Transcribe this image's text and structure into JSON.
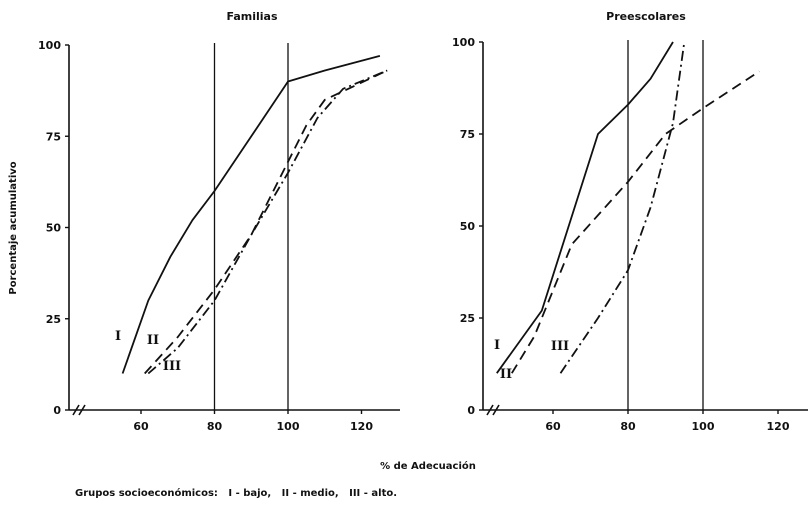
{
  "xlabel": "% de Adecuación",
  "footnote": "Grupos socioeconómicos:   I - bajo,   II - medio,   III - alto.",
  "chart_data": [
    {
      "type": "line",
      "title": "Familias",
      "ylabel": "Porcentaje acumulativo",
      "xlabel": "% de Adecuación",
      "xlim": [
        40,
        130
      ],
      "ylim": [
        0,
        100
      ],
      "x_ticks": [
        "60",
        "80",
        "100",
        "120"
      ],
      "y_ticks": [
        "0",
        "25",
        "50",
        "75",
        "100"
      ],
      "vlines": [
        80,
        100
      ],
      "series": [
        {
          "name": "I",
          "style": "solid",
          "x": [
            55,
            62,
            68,
            74,
            80,
            90,
            100,
            110,
            125
          ],
          "y": [
            10,
            30,
            42,
            52,
            60,
            75,
            90,
            93,
            97
          ]
        },
        {
          "name": "II",
          "style": "dashed",
          "x": [
            61,
            70,
            80,
            90,
            100,
            105,
            110,
            127
          ],
          "y": [
            10,
            20,
            33,
            48,
            68,
            78,
            85,
            93
          ]
        },
        {
          "name": "III",
          "style": "dashdot",
          "x": [
            62,
            70,
            80,
            90,
            100,
            108,
            115,
            127
          ],
          "y": [
            10,
            17,
            30,
            48,
            65,
            80,
            88,
            93
          ]
        }
      ],
      "labels": [
        "I",
        "II",
        "III"
      ]
    },
    {
      "type": "line",
      "title": "Preescolares",
      "ylabel": "",
      "xlabel": "% de Adecuación",
      "xlim": [
        40,
        130
      ],
      "ylim": [
        0,
        100
      ],
      "x_ticks": [
        "60",
        "80",
        "100",
        "120"
      ],
      "y_ticks": [
        "0",
        "25",
        "50",
        "75",
        "100"
      ],
      "vlines": [
        80,
        100
      ],
      "series": [
        {
          "name": "I",
          "style": "solid",
          "x": [
            45,
            57,
            72,
            80,
            86,
            92
          ],
          "y": [
            10,
            27,
            75,
            83,
            90,
            100
          ]
        },
        {
          "name": "II",
          "style": "dashed",
          "x": [
            49,
            55,
            65,
            80,
            90,
            100,
            115
          ],
          "y": [
            10,
            20,
            45,
            62,
            75,
            82,
            92
          ]
        },
        {
          "name": "III",
          "style": "dashdot",
          "x": [
            62,
            72,
            80,
            86,
            92,
            95
          ],
          "y": [
            10,
            25,
            38,
            55,
            78,
            100
          ]
        }
      ],
      "labels": [
        "I",
        "II",
        "III"
      ]
    }
  ]
}
